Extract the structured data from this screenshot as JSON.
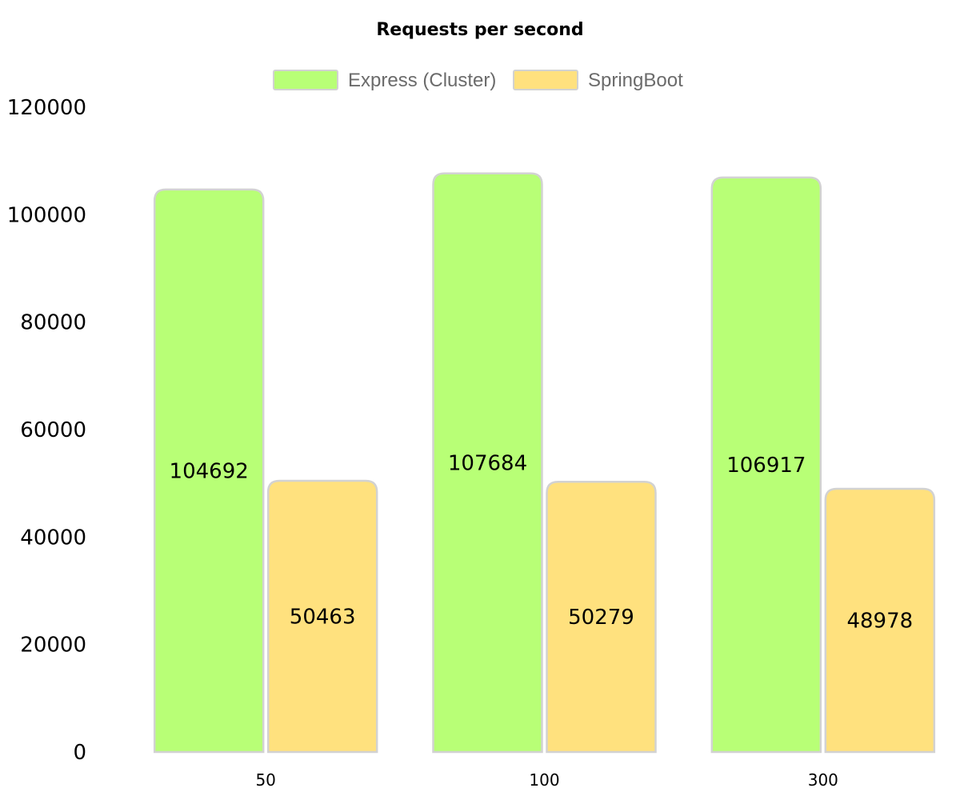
{
  "chart_data": {
    "type": "bar",
    "title": "Requests per second",
    "categories": [
      "50",
      "100",
      "300"
    ],
    "series": [
      {
        "name": "Express (Cluster)",
        "values": [
          104692,
          107684,
          106917
        ],
        "color": "#b8ff76",
        "border": "#d2d2d2"
      },
      {
        "name": "SpringBoot",
        "values": [
          50463,
          50279,
          48978
        ],
        "color": "#ffe17e",
        "border": "#d2d2d2"
      }
    ],
    "yticks": [
      "0",
      "20000",
      "40000",
      "60000",
      "80000",
      "100000",
      "120000"
    ],
    "ylim": [
      0,
      120000
    ],
    "grid": false,
    "legend_position": "top",
    "data_labels": true
  }
}
